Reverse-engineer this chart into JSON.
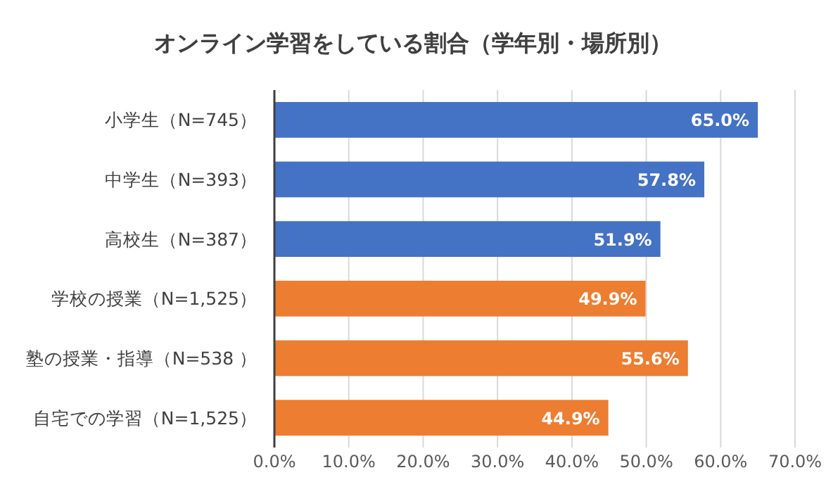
{
  "chart_data": {
    "type": "bar",
    "orientation": "horizontal",
    "title": "オンライン学習をしている割合（学年別・場所別）",
    "categories": [
      "小学生（N=745）",
      "中学生（N=393）",
      "高校生（N=387）",
      "学校の授業（N=1,525）",
      "塾の授業・指導（N=538 ）",
      "自宅での学習（N=1,525）"
    ],
    "values": [
      65.0,
      57.8,
      51.9,
      49.9,
      55.6,
      44.9
    ],
    "value_labels": [
      "65.0%",
      "57.8%",
      "51.9%",
      "49.9%",
      "55.6%",
      "44.9%"
    ],
    "colors": [
      "#4472c4",
      "#4472c4",
      "#4472c4",
      "#ed7d31",
      "#ed7d31",
      "#ed7d31"
    ],
    "xlim": [
      0,
      70
    ],
    "xticks": [
      {
        "value": 0,
        "label": "0.0%"
      },
      {
        "value": 10,
        "label": "10.0%"
      },
      {
        "value": 20,
        "label": "20.0%"
      },
      {
        "value": 30,
        "label": "30.0%"
      },
      {
        "value": 40,
        "label": "40.0%"
      },
      {
        "value": 50,
        "label": "50.0%"
      },
      {
        "value": 60,
        "label": "60.0%"
      },
      {
        "value": 70,
        "label": "70.0%"
      }
    ],
    "grid": "x"
  }
}
